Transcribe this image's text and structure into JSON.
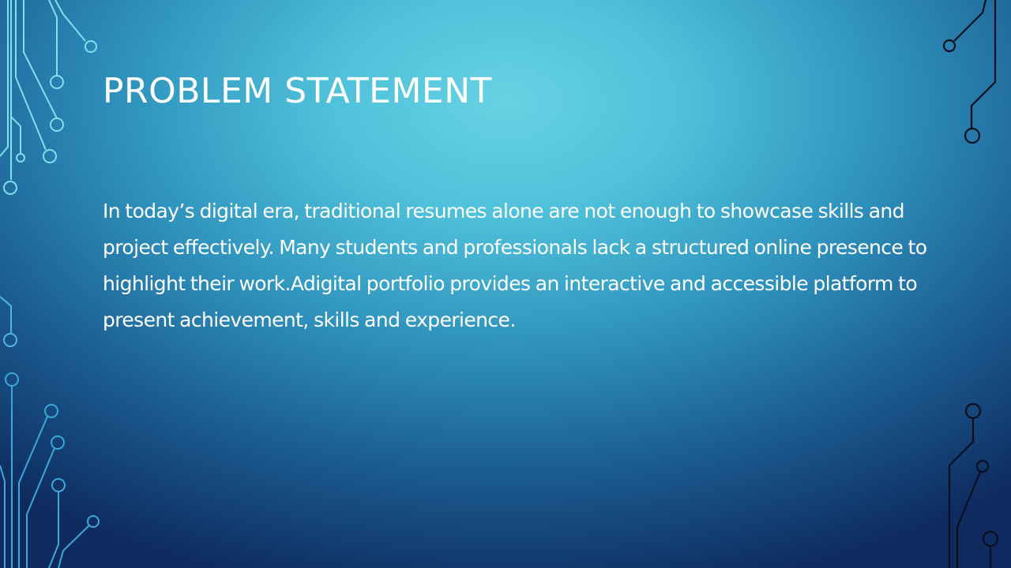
{
  "slide": {
    "title": "PROBLEM STATEMENT",
    "body": "In today’s digital era, traditional resumes alone are not enough to showcase skills and project effectively. Many students and professionals lack a structured online presence to highlight their work.Adigital portfolio provides an interactive and accessible platform to present achievement, skills and experience."
  },
  "colors": {
    "background_light": "#67d2e3",
    "background_dark": "#0e2a5e",
    "circuit_left_top": "#7fe0ee",
    "circuit_left_bottom": "#3aa8d8",
    "circuit_right": "#0a0f1e",
    "text": "#ffffff"
  },
  "decorations": {
    "left_circuit": "circuit-lines-icon",
    "right_circuit": "circuit-lines-icon"
  }
}
